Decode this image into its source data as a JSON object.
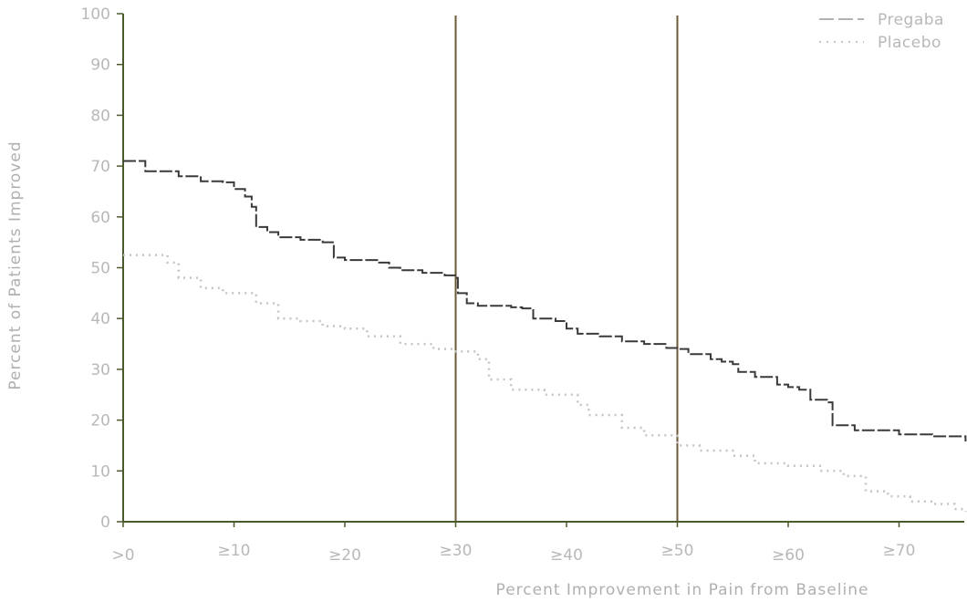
{
  "chart_data": {
    "type": "line",
    "title": "",
    "xlabel": "Percent Improvement in Pain from Baseline",
    "ylabel": "Percent of Patients Improved",
    "xlim": [
      0,
      76
    ],
    "ylim": [
      0,
      100
    ],
    "y_ticks": [
      "0",
      "10",
      "20",
      "30",
      "40",
      "50",
      "60",
      "70",
      "80",
      "90",
      "100"
    ],
    "x_ticks": [
      {
        "value": 0,
        "label": ">0"
      },
      {
        "value": 10,
        "label": "≥10"
      },
      {
        "value": 20,
        "label": "≥20"
      },
      {
        "value": 30,
        "label": "≥30"
      },
      {
        "value": 40,
        "label": "≥40"
      },
      {
        "value": 50,
        "label": "≥50"
      },
      {
        "value": 60,
        "label": "≥60"
      },
      {
        "value": 70,
        "label": "≥70"
      }
    ],
    "reference_lines_x": [
      30,
      50
    ],
    "legend_position": "top-right",
    "colors": {
      "pregabalin": "#3a3a3a",
      "placebo": "#c4c4c4",
      "reference": "#6b5a38",
      "axis": "#4a5a2c"
    },
    "series": [
      {
        "name": "Pregaba",
        "style": "dashed",
        "points": [
          [
            0,
            71
          ],
          [
            1.5,
            71
          ],
          [
            2,
            69
          ],
          [
            5,
            68
          ],
          [
            7,
            67
          ],
          [
            9,
            66.8
          ],
          [
            10,
            65.5
          ],
          [
            11,
            64
          ],
          [
            11.6,
            62
          ],
          [
            12,
            58
          ],
          [
            13,
            57
          ],
          [
            14,
            56
          ],
          [
            16,
            55.5
          ],
          [
            18,
            55
          ],
          [
            19,
            52
          ],
          [
            20,
            51.5
          ],
          [
            23,
            51
          ],
          [
            24,
            50
          ],
          [
            25,
            49.5
          ],
          [
            27,
            49
          ],
          [
            29,
            48.5
          ],
          [
            30,
            48
          ],
          [
            30.2,
            45
          ],
          [
            31,
            43
          ],
          [
            32,
            42.5
          ],
          [
            35,
            42.2
          ],
          [
            36,
            42
          ],
          [
            37,
            40
          ],
          [
            39,
            39.5
          ],
          [
            40,
            38
          ],
          [
            41,
            37
          ],
          [
            43,
            36.5
          ],
          [
            45,
            35.5
          ],
          [
            47,
            35
          ],
          [
            49,
            34.2
          ],
          [
            50,
            34
          ],
          [
            51,
            33
          ],
          [
            53,
            32
          ],
          [
            54,
            31.5
          ],
          [
            55,
            31
          ],
          [
            55.5,
            29.5
          ],
          [
            57,
            28.5
          ],
          [
            59,
            27
          ],
          [
            60,
            26.5
          ],
          [
            61,
            26
          ],
          [
            62,
            24
          ],
          [
            63.5,
            23.5
          ],
          [
            64,
            19
          ],
          [
            66,
            18
          ],
          [
            70,
            17.2
          ],
          [
            73,
            16.8
          ],
          [
            76,
            15.8
          ]
        ]
      },
      {
        "name": "Placebo",
        "style": "dotted",
        "points": [
          [
            0,
            52.5
          ],
          [
            2,
            52.5
          ],
          [
            4,
            51
          ],
          [
            5,
            48
          ],
          [
            7,
            46
          ],
          [
            9,
            45
          ],
          [
            12,
            43
          ],
          [
            14,
            40
          ],
          [
            16,
            39.5
          ],
          [
            18,
            38.5
          ],
          [
            20,
            38
          ],
          [
            22,
            36.5
          ],
          [
            25,
            35
          ],
          [
            28,
            34
          ],
          [
            30,
            33.5
          ],
          [
            32,
            32
          ],
          [
            33,
            28
          ],
          [
            35,
            26
          ],
          [
            38,
            25
          ],
          [
            41,
            23
          ],
          [
            42,
            21
          ],
          [
            45,
            18.5
          ],
          [
            47,
            17
          ],
          [
            50,
            15
          ],
          [
            52,
            14
          ],
          [
            55,
            13
          ],
          [
            57,
            11.5
          ],
          [
            60,
            11
          ],
          [
            63,
            10
          ],
          [
            65,
            9
          ],
          [
            67,
            6
          ],
          [
            69,
            5
          ],
          [
            71,
            4
          ],
          [
            73,
            3.5
          ],
          [
            75,
            2.5
          ],
          [
            76,
            2
          ]
        ]
      }
    ]
  }
}
